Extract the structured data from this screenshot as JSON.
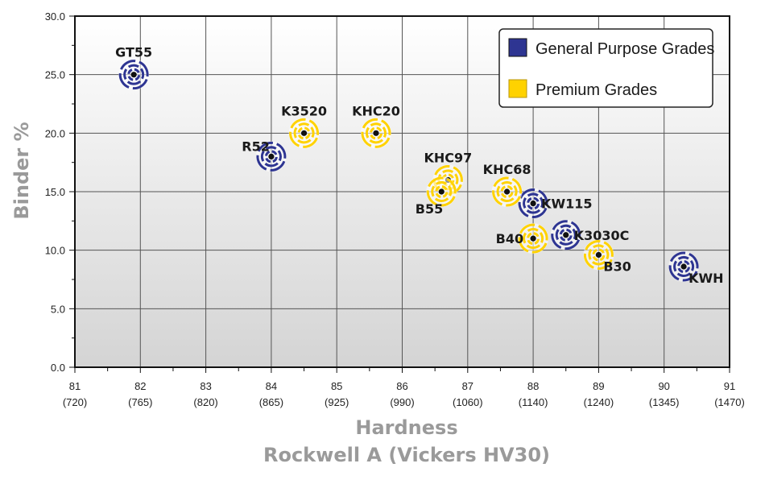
{
  "chart_data": {
    "type": "scatter",
    "xlabel": "Hardness",
    "xlabel2": "Rockwell A (Vickers HV30)",
    "ylabel": "Binder %",
    "xlim": [
      81,
      91
    ],
    "ylim": [
      0,
      30
    ],
    "x_ticks": [
      {
        "value": 81,
        "label": "81",
        "sub": "(720)"
      },
      {
        "value": 82,
        "label": "82",
        "sub": "(765)"
      },
      {
        "value": 83,
        "label": "83",
        "sub": "(820)"
      },
      {
        "value": 84,
        "label": "84",
        "sub": "(865)"
      },
      {
        "value": 85,
        "label": "85",
        "sub": "(925)"
      },
      {
        "value": 86,
        "label": "86",
        "sub": "(990)"
      },
      {
        "value": 87,
        "label": "87",
        "sub": "(1060)"
      },
      {
        "value": 88,
        "label": "88",
        "sub": "(1140)"
      },
      {
        "value": 89,
        "label": "89",
        "sub": "(1240)"
      },
      {
        "value": 90,
        "label": "90",
        "sub": "(1345)"
      },
      {
        "value": 91,
        "label": "91",
        "sub": "(1470)"
      }
    ],
    "y_ticks": [
      {
        "value": 0,
        "label": "0.0"
      },
      {
        "value": 5,
        "label": "5.0"
      },
      {
        "value": 10,
        "label": "10.0"
      },
      {
        "value": 15,
        "label": "15.0"
      },
      {
        "value": 20,
        "label": "20.0"
      },
      {
        "value": 25,
        "label": "25.0"
      },
      {
        "value": 30,
        "label": "30.0"
      }
    ],
    "grid": true,
    "legend_position": "top-right",
    "series": [
      {
        "name": "General Purpose Grades",
        "color": "#2e3592",
        "points": [
          {
            "label": "GT55",
            "x": 81.9,
            "y": 25.0,
            "label_pos": "above"
          },
          {
            "label": "R52",
            "x": 84.0,
            "y": 18.0,
            "label_pos": "above-left"
          },
          {
            "label": "KW115",
            "x": 88.0,
            "y": 14.0,
            "label_pos": "right"
          },
          {
            "label": "K3030C",
            "x": 88.5,
            "y": 11.3,
            "label_pos": "right"
          },
          {
            "label": "KWH",
            "x": 90.3,
            "y": 8.6,
            "label_pos": "below-right"
          }
        ]
      },
      {
        "name": "Premium Grades",
        "color": "#ffd200",
        "points": [
          {
            "label": "K3520",
            "x": 84.5,
            "y": 20.0,
            "label_pos": "above"
          },
          {
            "label": "KHC20",
            "x": 85.6,
            "y": 20.0,
            "label_pos": "above"
          },
          {
            "label": "KHC97",
            "x": 86.7,
            "y": 16.0,
            "label_pos": "above"
          },
          {
            "label": "B55",
            "x": 86.6,
            "y": 15.0,
            "label_pos": "below-left"
          },
          {
            "label": "KHC68",
            "x": 87.6,
            "y": 15.0,
            "label_pos": "above"
          },
          {
            "label": "B40",
            "x": 88.0,
            "y": 11.0,
            "label_pos": "left"
          },
          {
            "label": "B30",
            "x": 89.0,
            "y": 9.6,
            "label_pos": "below-right"
          }
        ]
      }
    ]
  }
}
